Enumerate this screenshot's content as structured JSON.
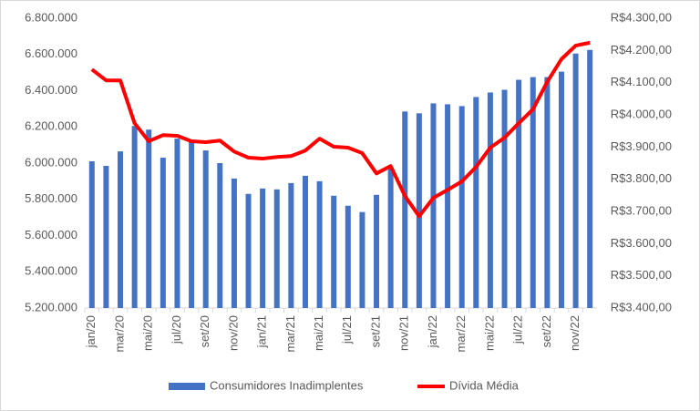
{
  "chart_data": {
    "type": "bar-line",
    "categories": [
      "jan/20",
      null,
      "mar/20",
      null,
      "mai/20",
      null,
      "jul/20",
      null,
      "set/20",
      null,
      "nov/20",
      null,
      "jan/21",
      null,
      "mar/21",
      null,
      "mai/21",
      null,
      "jul/21",
      null,
      "set/21",
      null,
      "nov/21",
      null,
      "jan/22",
      null,
      "mar/22",
      null,
      "mai/22",
      null,
      "jul/22",
      null,
      "set/22",
      null,
      "nov/22",
      null
    ],
    "series": [
      {
        "name": "Consumidores Inadimplentes",
        "type": "bar",
        "color": "#4472c4",
        "values": [
          6010000,
          5985000,
          6065000,
          6205000,
          6185000,
          6030000,
          6135000,
          6120000,
          6070000,
          6000000,
          5915000,
          5830000,
          5860000,
          5855000,
          5890000,
          5930000,
          5900000,
          5820000,
          5765000,
          5730000,
          5825000,
          5970000,
          6285000,
          6275000,
          6330000,
          6325000,
          6315000,
          6365000,
          6390000,
          6405000,
          6460000,
          6475000,
          6475000,
          6505000,
          6605000,
          6625000
        ]
      },
      {
        "name": "Dívida Média",
        "type": "line",
        "axis": "y2",
        "color": "#ff0000",
        "values": [
          4141,
          4107,
          4107,
          3974,
          3918,
          3937,
          3935,
          3918,
          3915,
          3920,
          3886,
          3867,
          3864,
          3869,
          3872,
          3889,
          3926,
          3901,
          3898,
          3881,
          3818,
          3841,
          3748,
          3685,
          3742,
          3767,
          3793,
          3838,
          3898,
          3929,
          3974,
          4017,
          4102,
          4173,
          4215,
          4224
        ]
      }
    ],
    "ylim": [
      5200000,
      6800000
    ],
    "yticks": [
      {
        "value": 5200000,
        "label": "5.200.000"
      },
      {
        "value": 5400000,
        "label": "5.400.000"
      },
      {
        "value": 5600000,
        "label": "5.600.000"
      },
      {
        "value": 5800000,
        "label": "5.800.000"
      },
      {
        "value": 6000000,
        "label": "6.000.000"
      },
      {
        "value": 6200000,
        "label": "6.200.000"
      },
      {
        "value": 6400000,
        "label": "6.400.000"
      },
      {
        "value": 6600000,
        "label": "6.600.000"
      },
      {
        "value": 6800000,
        "label": "6.800.000"
      }
    ],
    "y2lim": [
      3400,
      4300
    ],
    "y2ticks": [
      {
        "value": 3400,
        "label": "R$3.400,00"
      },
      {
        "value": 3500,
        "label": "R$3.500,00"
      },
      {
        "value": 3600,
        "label": "R$3.600,00"
      },
      {
        "value": 3700,
        "label": "R$3.700,00"
      },
      {
        "value": 3800,
        "label": "R$3.800,00"
      },
      {
        "value": 3900,
        "label": "R$3.900,00"
      },
      {
        "value": 4000,
        "label": "R$4.000,00"
      },
      {
        "value": 4100,
        "label": "R$4.100,00"
      },
      {
        "value": 4200,
        "label": "R$4.200,00"
      },
      {
        "value": 4300,
        "label": "R$4.300,00"
      }
    ],
    "legend": "bottom"
  }
}
